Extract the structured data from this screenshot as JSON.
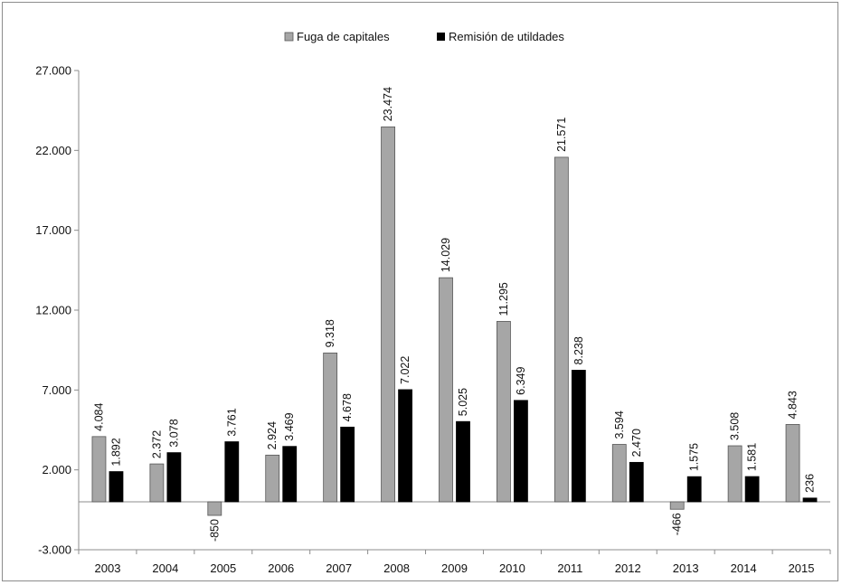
{
  "chart_data": {
    "type": "bar",
    "categories": [
      "2003",
      "2004",
      "2005",
      "2006",
      "2007",
      "2008",
      "2009",
      "2010",
      "2011",
      "2012",
      "2013",
      "2014",
      "2015"
    ],
    "series": [
      {
        "name": "Fuga de capitales",
        "color": "#a6a6a6",
        "values": [
          4084,
          2372,
          -850,
          2924,
          9318,
          23474,
          14029,
          11295,
          21571,
          3594,
          -466,
          3508,
          4843
        ],
        "labels": [
          "4.084",
          "2.372",
          "-850",
          "2.924",
          "9.318",
          "23.474",
          "14.029",
          "11.295",
          "21.571",
          "3.594",
          "-466",
          "3.508",
          "4.843"
        ]
      },
      {
        "name": "Remisión de utildades",
        "color": "#000000",
        "values": [
          1892,
          3078,
          3761,
          3469,
          4678,
          7022,
          5025,
          6349,
          8238,
          2470,
          1575,
          1581,
          236
        ],
        "labels": [
          "1.892",
          "3.078",
          "3.761",
          "3.469",
          "4.678",
          "7.022",
          "5.025",
          "6.349",
          "8.238",
          "2.470",
          "1.575",
          "1.581",
          "236"
        ]
      }
    ],
    "y_ticks": [
      -3000,
      2000,
      7000,
      12000,
      17000,
      22000,
      27000
    ],
    "y_tick_labels": [
      "-3.000",
      "2.000",
      "7.000",
      "12.000",
      "17.000",
      "22.000",
      "27.000"
    ],
    "ylim": [
      -3000,
      27000
    ],
    "grid": false,
    "legend_position": "top-center",
    "title": "",
    "xlabel": "",
    "ylabel": ""
  }
}
